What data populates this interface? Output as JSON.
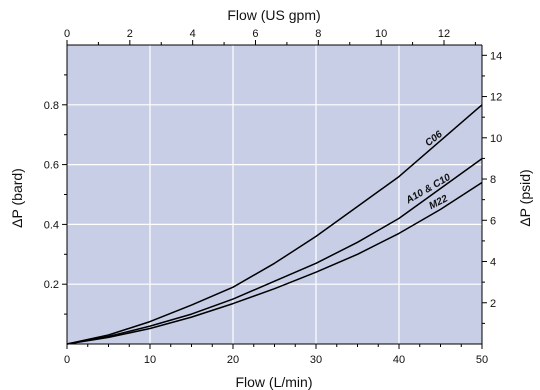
{
  "chart_data": {
    "type": "line",
    "plot_background": "#c8cee6",
    "grid": true,
    "grid_color": "#ffffff",
    "axes": {
      "x_bottom": {
        "label": "Flow (L/min)",
        "range": [
          0,
          50
        ],
        "ticks": [
          0,
          10,
          20,
          30,
          40,
          50
        ],
        "tick_labels": [
          "0",
          "10",
          "20",
          "30",
          "40",
          "50"
        ]
      },
      "x_top": {
        "label": "Flow (US gpm)",
        "range": [
          0,
          13.21
        ],
        "ticks": [
          0,
          2,
          4,
          6,
          8,
          10,
          12
        ],
        "tick_labels": [
          "0",
          "2",
          "4",
          "6",
          "8",
          "10",
          "12"
        ]
      },
      "y_left": {
        "label": "ΔP (bard)",
        "range": [
          0,
          1.0
        ],
        "ticks": [
          0.2,
          0.4,
          0.6,
          0.8
        ],
        "tick_labels": [
          "0.2",
          "0.4",
          "0.6",
          "0.8"
        ]
      },
      "y_right": {
        "label": "ΔP (psid)",
        "range": [
          0,
          14.5
        ],
        "ticks": [
          2,
          4,
          6,
          8,
          10,
          12,
          14
        ],
        "tick_labels": [
          "2",
          "4",
          "6",
          "8",
          "10",
          "12",
          "14"
        ]
      }
    },
    "series": [
      {
        "name": "C06",
        "x": [
          0,
          5,
          10,
          15,
          20,
          25,
          30,
          35,
          40,
          45,
          50
        ],
        "y": [
          0,
          0.03,
          0.075,
          0.13,
          0.19,
          0.27,
          0.36,
          0.46,
          0.56,
          0.68,
          0.8
        ]
      },
      {
        "name": "A10 & C10",
        "x": [
          0,
          5,
          10,
          15,
          20,
          25,
          30,
          35,
          40,
          45,
          50
        ],
        "y": [
          0,
          0.025,
          0.06,
          0.1,
          0.15,
          0.21,
          0.27,
          0.34,
          0.42,
          0.52,
          0.62
        ]
      },
      {
        "name": "M22",
        "x": [
          0,
          5,
          10,
          15,
          20,
          25,
          30,
          35,
          40,
          45,
          50
        ],
        "y": [
          0,
          0.022,
          0.052,
          0.09,
          0.135,
          0.185,
          0.24,
          0.3,
          0.37,
          0.45,
          0.54
        ]
      }
    ]
  }
}
